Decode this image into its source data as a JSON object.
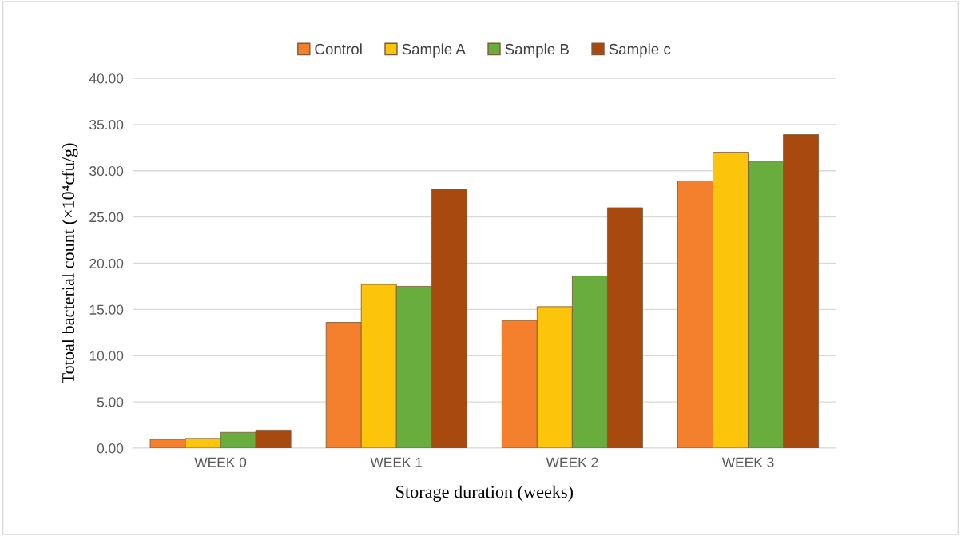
{
  "chart_data": {
    "type": "bar",
    "xlabel": "Storage duration (weeks)",
    "ylabel": "Totoal bacterial count (×10⁴cfu/g)",
    "categories": [
      "WEEK 0",
      "WEEK 1",
      "WEEK 2",
      "WEEK 3"
    ],
    "series": [
      {
        "name": "Control",
        "color": "#f4802e",
        "values": [
          0.95,
          13.6,
          13.8,
          28.9
        ]
      },
      {
        "name": "Sample A",
        "color": "#fcc40a",
        "values": [
          1.05,
          17.7,
          15.3,
          32.0
        ]
      },
      {
        "name": "Sample B",
        "color": "#6aad3f",
        "values": [
          1.7,
          17.5,
          18.6,
          31.0
        ]
      },
      {
        "name": "Sample c",
        "color": "#a84a10",
        "values": [
          1.95,
          28.0,
          26.0,
          33.9
        ]
      }
    ],
    "ylim": [
      0,
      40
    ],
    "yticks": [
      {
        "value": 0,
        "label": "0.00"
      },
      {
        "value": 5,
        "label": "5.00"
      },
      {
        "value": 10,
        "label": "10.00"
      },
      {
        "value": 15,
        "label": "15.00"
      },
      {
        "value": 20,
        "label": "20.00"
      },
      {
        "value": 25,
        "label": "25.00"
      },
      {
        "value": 30,
        "label": "30.00"
      },
      {
        "value": 35,
        "label": "35.00"
      },
      {
        "value": 40,
        "label": "40.00"
      }
    ],
    "grid": "y",
    "legend": "top"
  }
}
